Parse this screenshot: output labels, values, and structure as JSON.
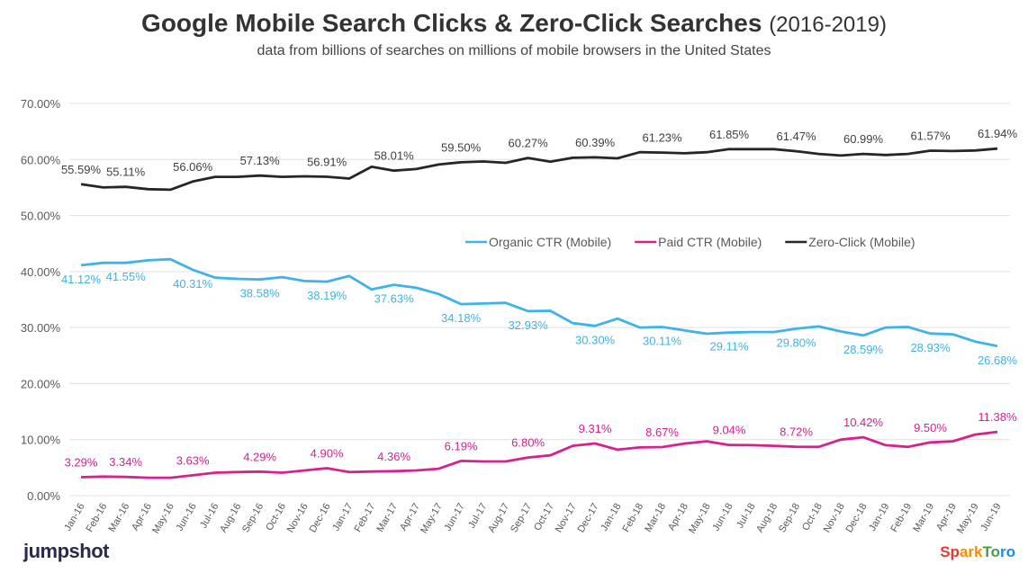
{
  "chart_data": {
    "type": "line",
    "title": "Google Mobile Search Clicks & Zero-Click Searches",
    "title_years": "(2016-2019)",
    "subtitle": "data from billions of searches on millions of mobile browsers in the United States",
    "xlabel": "",
    "ylabel": "",
    "ylim": [
      0,
      70
    ],
    "yticks": [
      "0.00%",
      "10.00%",
      "20.00%",
      "30.00%",
      "40.00%",
      "50.00%",
      "60.00%",
      "70.00%"
    ],
    "grid": true,
    "legend_position": "center-right",
    "categories": [
      "Jan-16",
      "Feb-16",
      "Mar-16",
      "Apr-16",
      "May-16",
      "Jun-16",
      "Jul-16",
      "Aug-16",
      "Sep-16",
      "Oct-16",
      "Nov-16",
      "Dec-16",
      "Jan-17",
      "Feb-17",
      "Mar-17",
      "Apr-17",
      "May-17",
      "Jun-17",
      "Jul-17",
      "Aug-17",
      "Sep-17",
      "Oct-17",
      "Nov-17",
      "Dec-17",
      "Jan-18",
      "Feb-18",
      "Mar-18",
      "Apr-18",
      "May-18",
      "Jun-18",
      "Jul-18",
      "Aug-18",
      "Sep-18",
      "Oct-18",
      "Nov-18",
      "Dec-18",
      "Jan-19",
      "Feb-19",
      "Mar-19",
      "Apr-19",
      "May-19",
      "Jun-19"
    ],
    "label_indices": [
      0,
      2,
      5,
      8,
      11,
      14,
      17,
      20,
      23,
      26,
      29,
      32,
      35,
      38,
      41
    ],
    "series": [
      {
        "name": "Organic CTR (Mobile)",
        "color": "#3db3e8",
        "label_pos": "below",
        "values": [
          41.12,
          41.55,
          41.55,
          42.0,
          42.2,
          40.31,
          38.9,
          38.7,
          38.58,
          39.0,
          38.3,
          38.19,
          39.2,
          36.8,
          37.63,
          37.1,
          36.0,
          34.18,
          34.3,
          34.4,
          32.93,
          33.0,
          30.8,
          30.3,
          31.6,
          30.0,
          30.11,
          29.5,
          28.9,
          29.11,
          29.2,
          29.2,
          29.8,
          30.2,
          29.3,
          28.59,
          30.0,
          30.1,
          28.93,
          28.8,
          27.5,
          26.68
        ]
      },
      {
        "name": "Paid CTR (Mobile)",
        "color": "#d6218f",
        "label_pos": "above",
        "values": [
          3.29,
          3.4,
          3.34,
          3.2,
          3.2,
          3.63,
          4.1,
          4.2,
          4.29,
          4.1,
          4.5,
          4.9,
          4.2,
          4.3,
          4.36,
          4.5,
          4.8,
          6.19,
          6.1,
          6.1,
          6.8,
          7.2,
          8.9,
          9.31,
          8.2,
          8.6,
          8.67,
          9.3,
          9.7,
          9.04,
          9.0,
          8.9,
          8.72,
          8.7,
          10.0,
          10.42,
          9.0,
          8.7,
          9.5,
          9.7,
          10.9,
          11.38
        ]
      },
      {
        "name": "Zero-Click (Mobile)",
        "color": "#262626",
        "label_pos": "above",
        "values": [
          55.59,
          55.0,
          55.11,
          54.7,
          54.6,
          56.06,
          56.9,
          56.9,
          57.13,
          56.9,
          57.0,
          56.91,
          56.6,
          58.7,
          58.01,
          58.3,
          59.1,
          59.5,
          59.64,
          59.4,
          60.27,
          59.6,
          60.3,
          60.39,
          60.2,
          61.3,
          61.23,
          61.1,
          61.3,
          61.85,
          61.85,
          61.85,
          61.47,
          61.0,
          60.7,
          60.99,
          60.8,
          61.0,
          61.57,
          61.5,
          61.6,
          61.94
        ]
      }
    ]
  },
  "logos": {
    "left": "jumpshot",
    "right": [
      "Sp",
      "ark",
      "To",
      "ro"
    ]
  }
}
